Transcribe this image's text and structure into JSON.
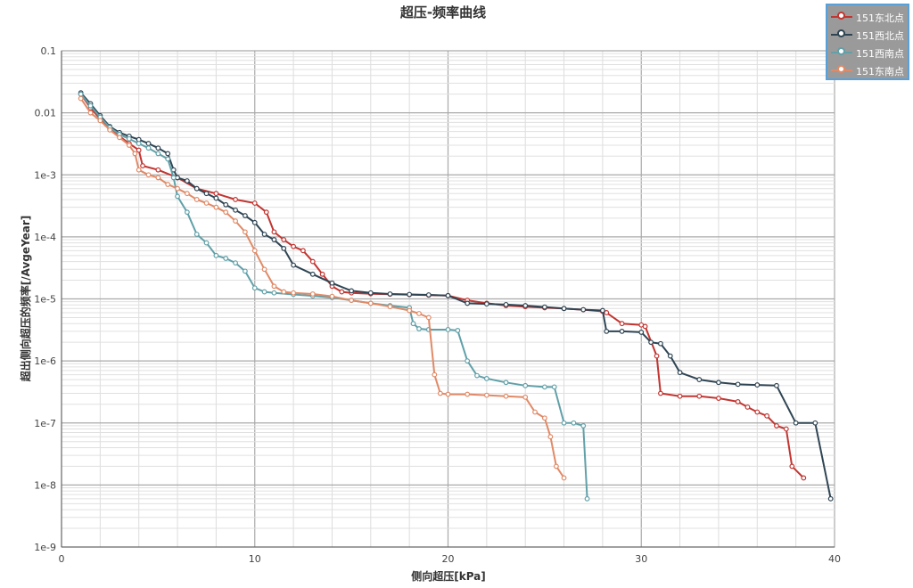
{
  "chart_data": {
    "type": "line",
    "title": "超压-频率曲线",
    "xlabel": "侧向超压[kPa]",
    "ylabel": "超出侧向超压的频率[/AvgeYear]",
    "x_scale": "linear",
    "y_scale": "log",
    "xlim": [
      0,
      40
    ],
    "ylim": [
      1e-09,
      0.1
    ],
    "x_ticks": [
      0,
      10,
      20,
      30,
      40
    ],
    "y_ticks": [
      {
        "value": 0.1,
        "label": "0.1"
      },
      {
        "value": 0.01,
        "label": "0.01"
      },
      {
        "value": 0.001,
        "label": "1e-3"
      },
      {
        "value": 0.0001,
        "label": "1e-4"
      },
      {
        "value": 1e-05,
        "label": "1e-5"
      },
      {
        "value": 1e-06,
        "label": "1e-6"
      },
      {
        "value": 1e-07,
        "label": "1e-7"
      },
      {
        "value": 1e-08,
        "label": "1e-8"
      },
      {
        "value": 1e-09,
        "label": "1e-9"
      }
    ],
    "grid": true,
    "legend_position": "top-right",
    "series": [
      {
        "name": "151东北点",
        "color": "#c23531",
        "x": [
          1,
          1.5,
          2,
          2.5,
          3,
          3.5,
          4,
          4.2,
          5,
          6,
          7,
          8,
          9,
          10,
          10.6,
          11,
          11.5,
          12,
          12.5,
          13,
          13.5,
          14,
          14.5,
          15,
          16,
          17,
          18,
          19,
          20,
          21,
          22,
          23,
          24,
          25,
          26,
          27,
          28,
          28.2,
          29,
          30,
          30.2,
          30.8,
          31,
          32,
          33,
          34,
          35,
          35.5,
          36,
          36.5,
          37,
          37.5,
          37.8,
          38.4
        ],
        "y": [
          0.02,
          0.012,
          0.008,
          0.0055,
          0.0042,
          0.0032,
          0.0025,
          0.0014,
          0.0012,
          0.0009,
          0.0006,
          0.0005,
          0.0004,
          0.00035,
          0.00025,
          0.00012,
          9e-05,
          7e-05,
          6e-05,
          4e-05,
          2.5e-05,
          1.6e-05,
          1.3e-05,
          1.25e-05,
          1.21e-05,
          1.19e-05,
          1.17e-05,
          1.15e-05,
          1.13e-05,
          9.5e-06,
          8.5e-06,
          7.8e-06,
          7.5e-06,
          7.2e-06,
          7e-06,
          6.7e-06,
          6.3e-06,
          6e-06,
          4e-06,
          3.8e-06,
          3.6e-06,
          1.2e-06,
          3e-07,
          2.7e-07,
          2.7e-07,
          2.5e-07,
          2.2e-07,
          1.8e-07,
          1.5e-07,
          1.3e-07,
          9e-08,
          8e-08,
          2e-08,
          1.3e-08
        ]
      },
      {
        "name": "151西北点",
        "color": "#2f4554",
        "x": [
          1,
          1.5,
          2,
          2.5,
          3,
          3.5,
          4,
          4.5,
          5,
          5.5,
          5.8,
          6,
          6.5,
          7,
          7.5,
          8,
          8.5,
          9,
          9.5,
          10,
          10.5,
          11,
          11.5,
          12,
          13,
          14,
          15,
          16,
          17,
          18,
          19,
          20,
          21,
          22,
          23,
          24,
          25,
          26,
          27,
          28,
          28.2,
          29,
          30,
          30.5,
          31,
          31.5,
          32,
          33,
          34,
          35,
          36,
          37,
          38,
          39,
          39.8
        ],
        "y": [
          0.021,
          0.014,
          0.009,
          0.006,
          0.0048,
          0.0042,
          0.0037,
          0.0032,
          0.0027,
          0.0022,
          0.0012,
          0.0009,
          0.0008,
          0.0006,
          0.0005,
          0.00042,
          0.00033,
          0.00027,
          0.00022,
          0.00017,
          0.00011,
          9e-05,
          6.5e-05,
          3.5e-05,
          2.5e-05,
          1.8e-05,
          1.35e-05,
          1.25e-05,
          1.2e-05,
          1.18e-05,
          1.16e-05,
          1.13e-05,
          8.5e-06,
          8.3e-06,
          8.1e-06,
          7.8e-06,
          7.4e-06,
          7e-06,
          6.7e-06,
          6.5e-06,
          3e-06,
          3e-06,
          2.9e-06,
          2e-06,
          1.9e-06,
          1.2e-06,
          6.5e-07,
          5e-07,
          4.5e-07,
          4.2e-07,
          4.1e-07,
          4e-07,
          1e-07,
          1e-07,
          6e-09
        ]
      },
      {
        "name": "151西南点",
        "color": "#61a0a8",
        "x": [
          1,
          1.5,
          2,
          2.5,
          3,
          3.5,
          4,
          4.5,
          5,
          5.5,
          5.8,
          6,
          6.5,
          7,
          7.5,
          8,
          8.5,
          9,
          9.5,
          10,
          10.5,
          11,
          12,
          13,
          14,
          15,
          16,
          17,
          18,
          18.2,
          18.5,
          19,
          20,
          20.5,
          21,
          21.5,
          22,
          23,
          24,
          25,
          25.5,
          26,
          26.5,
          27,
          27.2
        ],
        "y": [
          0.02,
          0.013,
          0.0085,
          0.0058,
          0.0045,
          0.0038,
          0.0032,
          0.0027,
          0.0022,
          0.0018,
          0.0009,
          0.00045,
          0.00025,
          0.00011,
          8e-05,
          5e-05,
          4.5e-05,
          3.8e-05,
          2.8e-05,
          1.5e-05,
          1.3e-05,
          1.25e-05,
          1.18e-05,
          1.12e-05,
          1.05e-05,
          9.5e-06,
          8.5e-06,
          7.8e-06,
          7.2e-06,
          4e-06,
          3.3e-06,
          3.2e-06,
          3.2e-06,
          3.1e-06,
          1e-06,
          5.8e-07,
          5.2e-07,
          4.5e-07,
          4e-07,
          3.8e-07,
          3.8e-07,
          1e-07,
          1e-07,
          9e-08,
          6e-09
        ]
      },
      {
        "name": "151东南点",
        "color": "#e08a67",
        "x": [
          1,
          1.5,
          2,
          2.5,
          3,
          3.5,
          3.8,
          4,
          4.5,
          5,
          5.5,
          6,
          6.5,
          7,
          7.5,
          8,
          8.5,
          9,
          9.5,
          10,
          10.5,
          11,
          11.5,
          12,
          13,
          14,
          15,
          16,
          17,
          18,
          18.5,
          19,
          19.3,
          19.6,
          20,
          21,
          22,
          23,
          24,
          24.5,
          25,
          25.3,
          25.6,
          26
        ],
        "y": [
          0.017,
          0.01,
          0.0075,
          0.0053,
          0.004,
          0.003,
          0.0022,
          0.0012,
          0.001,
          0.0009,
          0.0007,
          0.0006,
          0.0005,
          0.0004,
          0.00035,
          0.0003,
          0.00025,
          0.00018,
          0.00012,
          6e-05,
          3e-05,
          1.6e-05,
          1.3e-05,
          1.25e-05,
          1.2e-05,
          1.1e-05,
          9.5e-06,
          8.5e-06,
          7.5e-06,
          6.5e-06,
          5.8e-06,
          5e-06,
          6e-07,
          3e-07,
          2.9e-07,
          2.9e-07,
          2.8e-07,
          2.7e-07,
          2.6e-07,
          1.5e-07,
          1.2e-07,
          6e-08,
          2e-08,
          1.3e-08
        ]
      }
    ]
  }
}
